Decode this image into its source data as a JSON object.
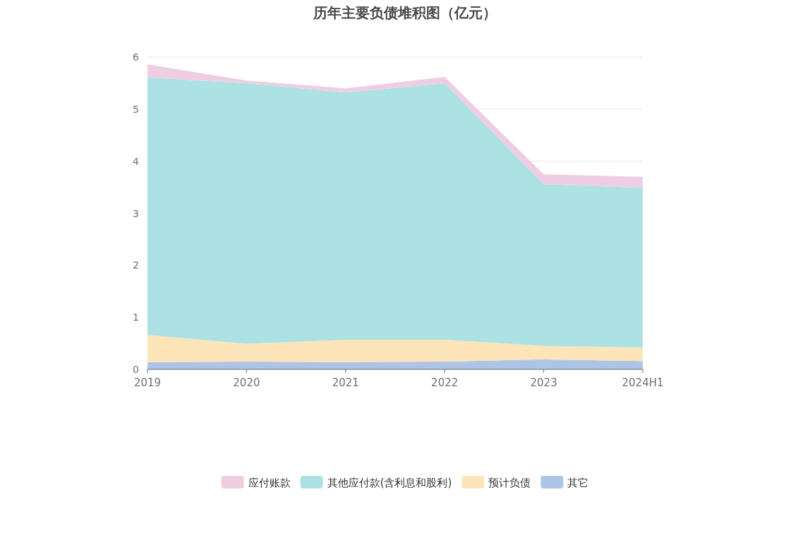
{
  "chart_data": {
    "type": "area",
    "title": "历年主要负债堆积图（亿元）",
    "stacked": true,
    "categories": [
      "2019",
      "2020",
      "2021",
      "2022",
      "2023",
      "2024H1"
    ],
    "series": [
      {
        "name": "其它",
        "color": "#adc4e6",
        "values": [
          0.14,
          0.15,
          0.14,
          0.15,
          0.19,
          0.16
        ]
      },
      {
        "name": "预计负债",
        "color": "#fde4b9",
        "values": [
          0.52,
          0.34,
          0.43,
          0.42,
          0.26,
          0.26
        ]
      },
      {
        "name": "其他应付款(含利息和股利)",
        "color": "#ace2e3",
        "values": [
          4.95,
          5.01,
          4.75,
          4.93,
          3.11,
          3.07
        ]
      },
      {
        "name": "应付账款",
        "color": "#efcee3",
        "values": [
          0.25,
          0.05,
          0.08,
          0.12,
          0.19,
          0.21
        ]
      }
    ],
    "ylim": [
      0,
      6
    ],
    "yticks": [
      0,
      1,
      2,
      3,
      4,
      5,
      6
    ],
    "grid": "y",
    "legend": "bottom"
  }
}
